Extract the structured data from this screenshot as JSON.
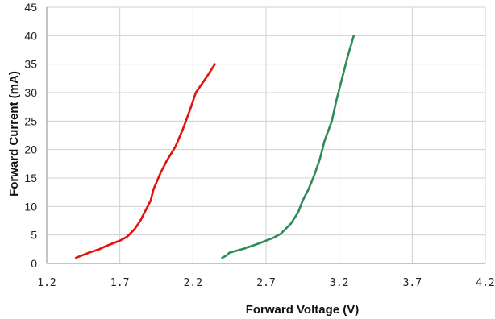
{
  "chart_data": {
    "type": "line",
    "title": "",
    "xlabel": "Forward  Voltage (V)",
    "ylabel": "Forward  Current (mA)",
    "xlim": [
      1.2,
      4.2
    ],
    "ylim": [
      0,
      45
    ],
    "xticks": [
      "1.2",
      "1.7",
      "2.2",
      "2.7",
      "3.2",
      "3.7",
      "4.2"
    ],
    "yticks": [
      "0",
      "5",
      "10",
      "15",
      "20",
      "25",
      "30",
      "35",
      "40",
      "45"
    ],
    "grid": true,
    "legend": "none",
    "series": [
      {
        "color": "#e3120b",
        "points": [
          [
            1.4,
            1
          ],
          [
            1.45,
            1.5
          ],
          [
            1.5,
            2
          ],
          [
            1.56,
            2.5
          ],
          [
            1.6,
            3
          ],
          [
            1.65,
            3.5
          ],
          [
            1.7,
            4
          ],
          [
            1.75,
            4.7
          ],
          [
            1.8,
            6
          ],
          [
            1.84,
            7.5
          ],
          [
            1.88,
            9.5
          ],
          [
            1.91,
            11
          ],
          [
            1.93,
            13
          ],
          [
            1.98,
            16
          ],
          [
            2.02,
            18
          ],
          [
            2.08,
            20.5
          ],
          [
            2.13,
            23.5
          ],
          [
            2.18,
            27
          ],
          [
            2.22,
            30
          ],
          [
            2.3,
            33
          ],
          [
            2.35,
            35
          ]
        ]
      },
      {
        "color": "#2e8b57",
        "points": [
          [
            2.4,
            1
          ],
          [
            2.43,
            1.4
          ],
          [
            2.45,
            1.9
          ],
          [
            2.55,
            2.6
          ],
          [
            2.65,
            3.5
          ],
          [
            2.75,
            4.5
          ],
          [
            2.8,
            5.2
          ],
          [
            2.87,
            7
          ],
          [
            2.92,
            9
          ],
          [
            2.95,
            11
          ],
          [
            2.99,
            13
          ],
          [
            3.03,
            15.5
          ],
          [
            3.07,
            18.5
          ],
          [
            3.1,
            21.5
          ],
          [
            3.15,
            25
          ],
          [
            3.18,
            28.5
          ],
          [
            3.22,
            32.5
          ],
          [
            3.26,
            36.5
          ],
          [
            3.3,
            40
          ]
        ]
      }
    ]
  }
}
